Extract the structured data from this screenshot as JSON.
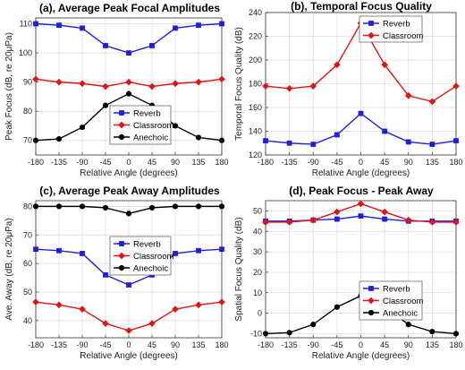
{
  "chart_data": [
    {
      "type": "line",
      "title": "(a), Average Peak Focal Amplitudes",
      "xlabel": "Relative Angle (degrees)",
      "ylabel": "Peak Focus (dB, re 20μPa)",
      "x": [
        -180,
        -135,
        -90,
        -45,
        0,
        45,
        90,
        135,
        180
      ],
      "xlim": [
        -180,
        180
      ],
      "ylim": [
        65,
        112
      ],
      "yticks": [
        70,
        80,
        90,
        100,
        110
      ],
      "grid": true,
      "legend": "center-right",
      "series": [
        {
          "name": "Reverb",
          "color": "#1f1fe0",
          "marker": "square",
          "values": [
            110,
            109.5,
            108.5,
            102.5,
            100,
            102.5,
            108.5,
            109.5,
            110
          ]
        },
        {
          "name": "Classroom",
          "color": "#e01414",
          "marker": "diamond",
          "values": [
            91,
            90,
            89.5,
            88.5,
            90,
            88.5,
            89.5,
            90,
            91
          ]
        },
        {
          "name": "Anechoic",
          "color": "#000000",
          "marker": "circle",
          "values": [
            70,
            70.5,
            74.5,
            82,
            86,
            82,
            75,
            71,
            70
          ]
        }
      ]
    },
    {
      "type": "line",
      "title": "(b), Temporal Focus Quality",
      "xlabel": "Relative Angle (degrees)",
      "ylabel": "Temporal Focus Quality (dB)",
      "x": [
        -180,
        -135,
        -90,
        -45,
        0,
        45,
        90,
        135,
        180
      ],
      "xlim": [
        -180,
        180
      ],
      "ylim": [
        120,
        240
      ],
      "yticks": [
        120,
        140,
        160,
        180,
        200,
        220,
        240
      ],
      "grid": true,
      "legend": "top-right",
      "series": [
        {
          "name": "Reverb",
          "color": "#1f1fe0",
          "marker": "square",
          "values": [
            132,
            130,
            129,
            137,
            155,
            140,
            131,
            129,
            132
          ]
        },
        {
          "name": "Classroom",
          "color": "#e01414",
          "marker": "diamond",
          "values": [
            178,
            176,
            178,
            196,
            231,
            196,
            170,
            165,
            178
          ]
        }
      ]
    },
    {
      "type": "line",
      "title": "(c), Average Peak Away Amplitudes",
      "xlabel": "Relative Angle (degrees)",
      "ylabel": "Ave. Away (dB, re 20μPa)",
      "x": [
        -180,
        -135,
        -90,
        -45,
        0,
        45,
        90,
        135,
        180
      ],
      "xlim": [
        -180,
        180
      ],
      "ylim": [
        34,
        82
      ],
      "yticks": [
        40,
        50,
        60,
        70,
        80
      ],
      "grid": true,
      "legend": "center-right",
      "series": [
        {
          "name": "Reverb",
          "color": "#1f1fe0",
          "marker": "square",
          "values": [
            65,
            64.5,
            63.5,
            56,
            52.5,
            56,
            63.5,
            64.5,
            65
          ]
        },
        {
          "name": "Classroom",
          "color": "#e01414",
          "marker": "diamond",
          "values": [
            46.5,
            45.5,
            44,
            39,
            36.5,
            39,
            44,
            45.5,
            46.5
          ]
        },
        {
          "name": "Anechoic",
          "color": "#000000",
          "marker": "circle",
          "values": [
            80,
            80,
            80,
            79.5,
            77.5,
            79.5,
            80,
            80,
            80
          ]
        }
      ]
    },
    {
      "type": "line",
      "title": "(d), Peak Focus - Peak Away",
      "xlabel": "Relative Angle (degrees)",
      "ylabel": "Spatial Focus Quality (dB)",
      "x": [
        -180,
        -135,
        -90,
        -45,
        0,
        45,
        90,
        135,
        180
      ],
      "xlim": [
        -180,
        180
      ],
      "ylim": [
        -12,
        55
      ],
      "yticks": [
        -10,
        0,
        10,
        20,
        30,
        40,
        50
      ],
      "grid": true,
      "legend": "center-right",
      "series": [
        {
          "name": "Reverb",
          "color": "#1f1fe0",
          "marker": "square",
          "values": [
            45,
            45,
            45.5,
            46,
            47.5,
            46,
            45,
            45,
            45
          ]
        },
        {
          "name": "Classroom",
          "color": "#e01414",
          "marker": "diamond",
          "values": [
            44.5,
            44.5,
            45.5,
            49.5,
            53.5,
            49.5,
            45.5,
            44.5,
            44.5
          ]
        },
        {
          "name": "Anechoic",
          "color": "#000000",
          "marker": "circle",
          "values": [
            -10,
            -9.5,
            -5.5,
            3,
            8.5,
            3,
            -5.5,
            -9,
            -10
          ]
        }
      ]
    }
  ]
}
